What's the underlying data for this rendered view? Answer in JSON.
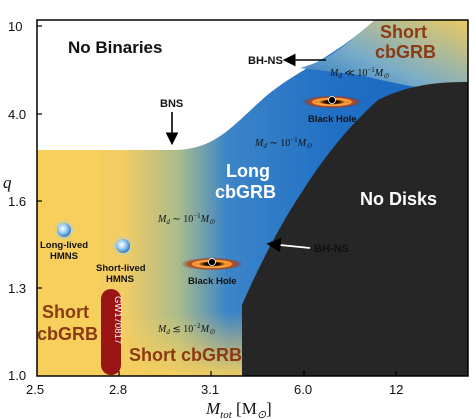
{
  "axes": {
    "x_ticks": [
      "2.5",
      "2.8",
      "3.1",
      "6.0",
      "12"
    ],
    "y_ticks": [
      "10",
      "4.0",
      "1.6",
      "1.3",
      "1.0"
    ],
    "x_title": "M",
    "x_title_sub": "tot",
    "x_title_unit_open": " [M",
    "x_title_unit_sub": "⊙",
    "x_title_unit_close": "]",
    "y_title": "q"
  },
  "regions": {
    "no_binaries": "No Binaries",
    "short_top_line1": "Short",
    "short_top_line2": "cbGRB",
    "long_line1": "Long",
    "long_line2": "cbGRB",
    "no_disks": "No Disks",
    "short_left_line1": "Short",
    "short_left_line2": "cbGRB",
    "short_bottom": "Short cbGRB"
  },
  "annotations": {
    "bh_ns_top": "BH-NS",
    "bns": "BNS",
    "bh_ns_mid": "BH-NS",
    "black_hole_top": "Black Hole",
    "black_hole_mid": "Black Hole",
    "long_lived_line1": "Long-lived",
    "long_lived_line2": "HMNS",
    "short_lived_line1": "Short-lived",
    "short_lived_line2": "HMNS",
    "gw_event": "GW170817"
  },
  "disk_masses": {
    "top": {
      "sym": "M",
      "sub": "d",
      "rel": " ≪ 10",
      "exp": "−1",
      "m": "M",
      "msub": "⊙"
    },
    "upper": {
      "sym": "M",
      "sub": "d",
      "rel": " ∼ 10",
      "exp": "−1",
      "m": "M",
      "msub": "⊙"
    },
    "middle": {
      "sym": "M",
      "sub": "d",
      "rel": " ∼ 10",
      "exp": "−1",
      "m": "M",
      "msub": "⊙"
    },
    "bottom": {
      "sym": "M",
      "sub": "d",
      "rel": " ≲ 10",
      "exp": "−2",
      "m": "M",
      "msub": "⊙"
    }
  },
  "colors": {
    "short_grb_text": "#8b3a12",
    "long_grb_text": "#ffffff",
    "no_disks_fill": "#262626",
    "blue_region": "#1f6fc5",
    "yellow_region": "#f6cf5c",
    "gw_marker": "#9b1414"
  }
}
